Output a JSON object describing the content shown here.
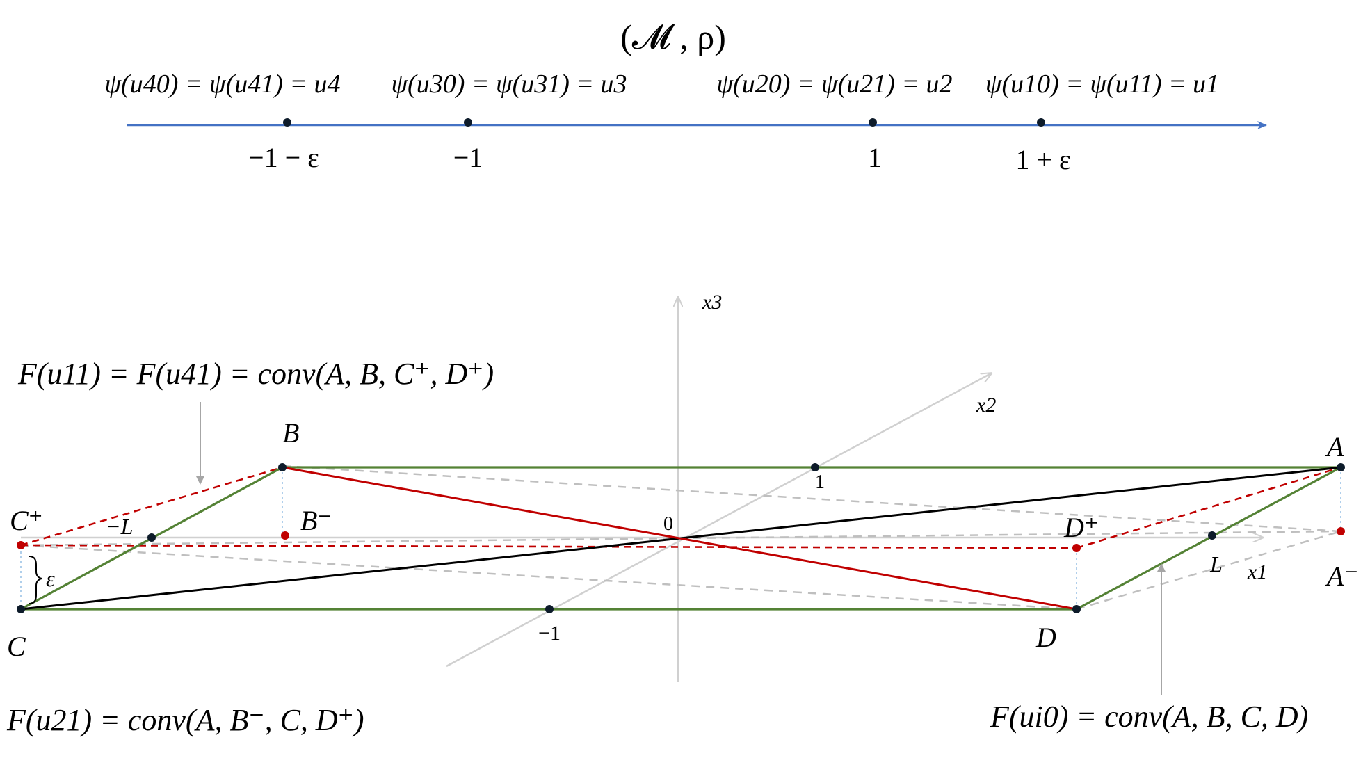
{
  "top": {
    "space_title": "(𝓜 , ρ)",
    "psi_labels": [
      "ψ(u40) = ψ(u41) = u4",
      "ψ(u30) = ψ(u31) = u3",
      "ψ(u20) = ψ(u21) = u2",
      "ψ(u10) = ψ(u11) = u1"
    ],
    "tick_labels": [
      "−1 − ε",
      "−1",
      "1",
      "1 + ε"
    ]
  },
  "diagram": {
    "axis_labels": {
      "x1": "x1",
      "x2": "x2",
      "x3": "x3"
    },
    "tick_labels": {
      "origin": "0",
      "neg_L": "−L",
      "pos_L": "L",
      "neg_one": "−1",
      "pos_one": "1"
    },
    "vertex_labels": {
      "A": "A",
      "B": "B",
      "C": "C",
      "D": "D",
      "A_minus": "A⁻",
      "B_minus": "B⁻",
      "C_plus": "C⁺",
      "D_plus": "D⁺"
    },
    "epsilon_label": "ε",
    "formulas": {
      "f_u11_u41": "F(u11) = F(u41) = conv(A, B, C⁺, D⁺)",
      "f_u21": "F(u21) = conv(A, B⁻, C, D⁺)",
      "f_ui0": "F(ui0) = conv(A, B, C, D)"
    }
  },
  "colors": {
    "number_line": "#4472C4",
    "green_edges": "#548235",
    "red_edges": "#C00000",
    "black_diagonal": "#000000",
    "axes_gray": "#D0D0D0",
    "dashed_gray": "#BFBFBF",
    "point_fill": "#0D1B2A",
    "red_point": "#C00000"
  }
}
